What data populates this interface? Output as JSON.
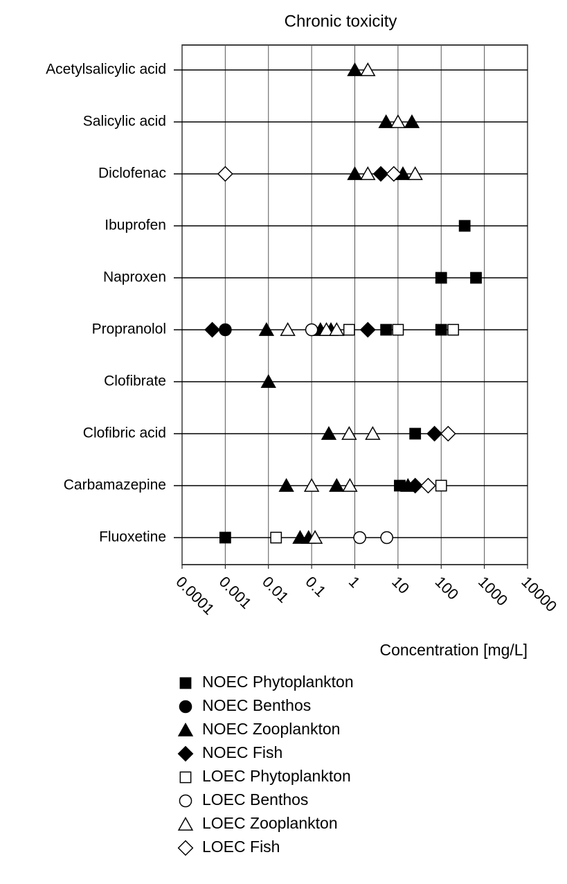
{
  "chart_data": {
    "type": "scatter",
    "title": "Chronic toxicity",
    "xlabel": "Concentration [mg/L]",
    "log_x": true,
    "grid": true,
    "xlim": [
      0.0001,
      10000
    ],
    "xticks": [
      0.0001,
      0.001,
      0.01,
      0.1,
      1,
      10,
      100,
      1000,
      10000
    ],
    "categories": [
      "Acetylsalicylic acid",
      "Salicylic acid",
      "Diclofenac",
      "Ibuprofen",
      "Naproxen",
      "Propranolol",
      "Clofibrate",
      "Clofibric acid",
      "Carbamazepine",
      "Fluoxetine"
    ],
    "series": [
      {
        "name": "NOEC Phytoplankton",
        "marker": "square",
        "filled": true,
        "color": "#000000",
        "categories": [
          "Ibuprofen",
          "Naproxen",
          "Naproxen",
          "Propranolol",
          "Propranolol",
          "Clofibric acid",
          "Carbamazepine",
          "Fluoxetine"
        ],
        "values": [
          350,
          100,
          640,
          5.3,
          100,
          25,
          11,
          0.001
        ]
      },
      {
        "name": "NOEC Benthos",
        "marker": "circle",
        "filled": true,
        "color": "#000000",
        "categories": [
          "Propranolol"
        ],
        "values": [
          0.001
        ]
      },
      {
        "name": "NOEC Zooplankton",
        "marker": "triangle",
        "filled": true,
        "color": "#000000",
        "categories": [
          "Acetylsalicylic acid",
          "Salicylic acid",
          "Salicylic acid",
          "Diclofenac",
          "Diclofenac",
          "Propranolol",
          "Propranolol",
          "Propranolol",
          "Clofibrate",
          "Clofibric acid",
          "Carbamazepine",
          "Carbamazepine",
          "Carbamazepine",
          "Fluoxetine",
          "Fluoxetine"
        ],
        "values": [
          1,
          5.3,
          21,
          1,
          13,
          0.009,
          0.16,
          0.28,
          0.01,
          0.25,
          0.026,
          0.38,
          17,
          0.054,
          0.085
        ]
      },
      {
        "name": "NOEC Fish",
        "marker": "diamond",
        "filled": true,
        "color": "#000000",
        "categories": [
          "Diclofenac",
          "Propranolol",
          "Propranolol",
          "Clofibric acid",
          "Carbamazepine"
        ],
        "values": [
          4,
          0.0005,
          2,
          70,
          25
        ]
      },
      {
        "name": "LOEC Phytoplankton",
        "marker": "square",
        "filled": false,
        "color": "#000000",
        "categories": [
          "Propranolol",
          "Propranolol",
          "Propranolol",
          "Carbamazepine",
          "Fluoxetine"
        ],
        "values": [
          0.74,
          10,
          190,
          100,
          0.015
        ]
      },
      {
        "name": "LOEC Benthos",
        "marker": "circle",
        "filled": false,
        "color": "#000000",
        "categories": [
          "Propranolol",
          "Fluoxetine",
          "Fluoxetine"
        ],
        "values": [
          0.1,
          1.3,
          5.5
        ]
      },
      {
        "name": "LOEC Zooplankton",
        "marker": "triangle",
        "filled": false,
        "color": "#000000",
        "categories": [
          "Acetylsalicylic acid",
          "Salicylic acid",
          "Diclofenac",
          "Diclofenac",
          "Propranolol",
          "Propranolol",
          "Propranolol",
          "Clofibric acid",
          "Clofibric acid",
          "Carbamazepine",
          "Carbamazepine",
          "Fluoxetine"
        ],
        "values": [
          2,
          10,
          2,
          25,
          0.028,
          0.22,
          0.38,
          0.74,
          2.6,
          0.1,
          0.77,
          0.12
        ]
      },
      {
        "name": "LOEC Fish",
        "marker": "diamond",
        "filled": false,
        "color": "#000000",
        "categories": [
          "Diclofenac",
          "Diclofenac",
          "Clofibric acid",
          "Carbamazepine"
        ],
        "values": [
          0.001,
          8,
          145,
          50
        ]
      }
    ]
  }
}
